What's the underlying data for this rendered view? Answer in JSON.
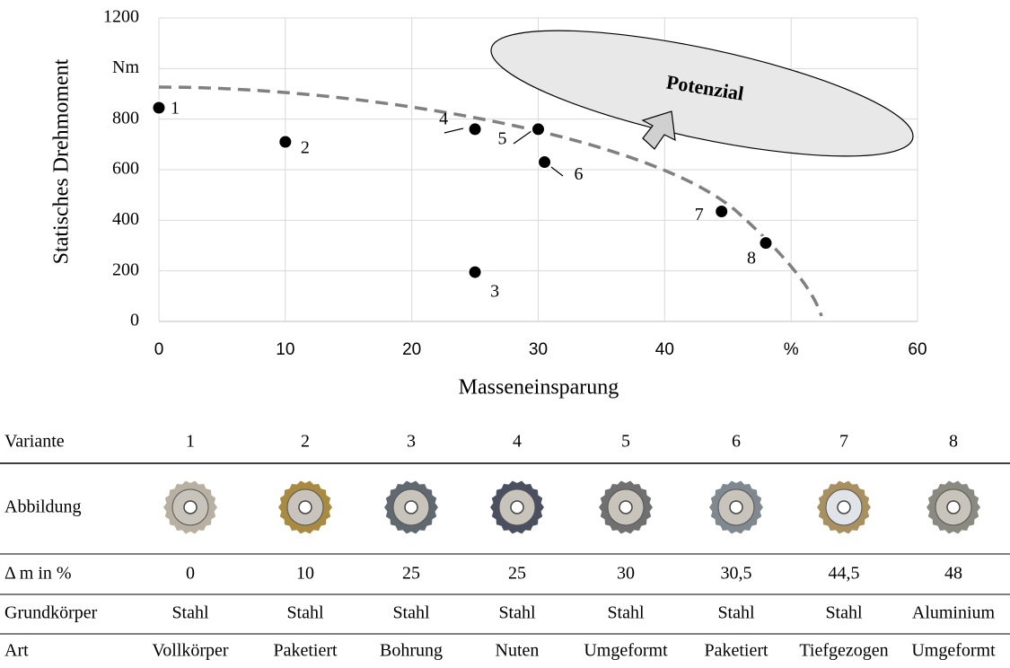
{
  "chart_data": {
    "type": "scatter",
    "xlabel": "Masseneinsparung",
    "ylabel": "Statisches Drehmoment",
    "x": [
      0,
      10,
      25,
      25,
      30,
      30.5,
      44.5,
      48
    ],
    "values": [
      845,
      710,
      195,
      760,
      760,
      630,
      435,
      310
    ],
    "point_labels": [
      "1",
      "2",
      "3",
      "4",
      "5",
      "6",
      "7",
      "8"
    ],
    "color": "#000000",
    "xlim": [
      0,
      60
    ],
    "xticks": [
      0,
      10,
      20,
      30,
      40,
      {
        "value": 50,
        "label": "%"
      },
      60
    ],
    "ylim": [
      0,
      1200
    ],
    "yticks": [
      0,
      200,
      400,
      600,
      800,
      {
        "value": 1000,
        "label": "Nm"
      },
      1200
    ],
    "grid": true,
    "annotation": "Potenzial"
  },
  "table": {
    "header": [
      "Variante",
      "1",
      "2",
      "3",
      "4",
      "5",
      "6",
      "7",
      "8"
    ],
    "rows": [
      [
        "Abbildung"
      ],
      [
        "Δ m in %",
        "0",
        "10",
        "25",
        "25",
        "30",
        "30,5",
        "44,5",
        "48"
      ],
      [
        "Grundkörper",
        "Stahl",
        "Stahl",
        "Stahl",
        "Stahl",
        "Stahl",
        "Stahl",
        "Stahl",
        "Aluminium"
      ],
      [
        "Art",
        "Vollkörper",
        "Paketiert",
        "Bohrung",
        "Nuten",
        "Umgeformt",
        "Paketiert",
        "Tiefgezogen",
        "Umgeformt"
      ]
    ]
  }
}
